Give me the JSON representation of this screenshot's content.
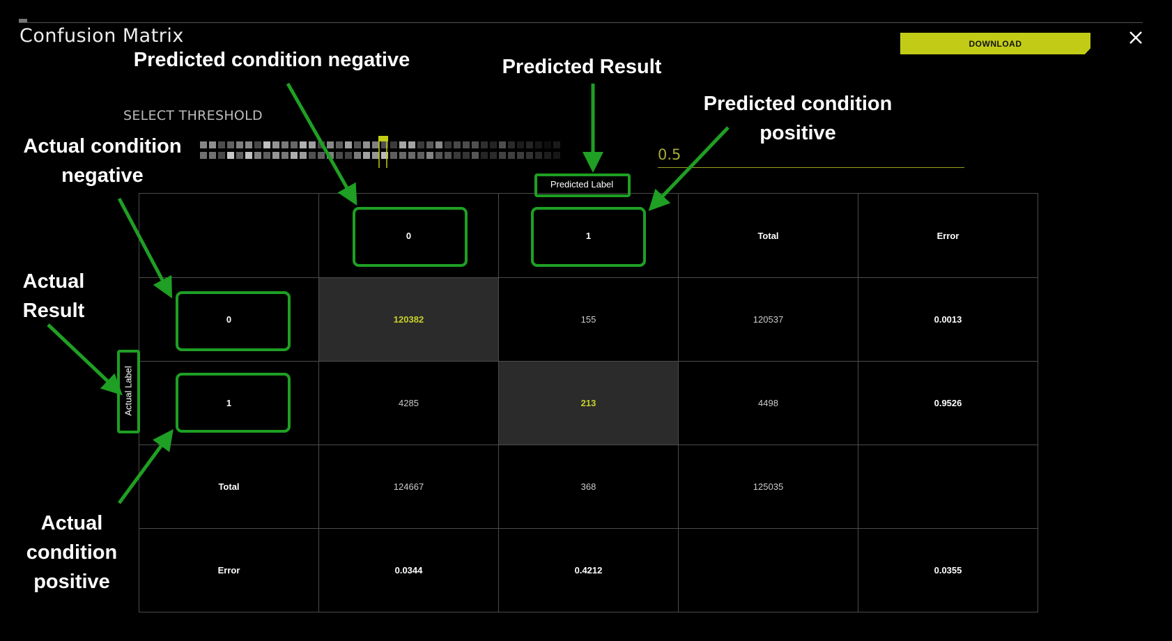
{
  "dialog": {
    "title": "Confusion Matrix",
    "download_label": "DOWNLOAD",
    "close_icon": "close-icon"
  },
  "threshold": {
    "label": "SELECT THRESHOLD",
    "value": "0.5"
  },
  "axis_labels": {
    "predicted": "Predicted Label",
    "actual": "Actual Label"
  },
  "matrix": {
    "header": [
      "",
      "0",
      "1",
      "Total",
      "Error"
    ],
    "rows": [
      {
        "label": "0",
        "cells": [
          "120382",
          "155",
          "120537",
          "0.0013"
        ]
      },
      {
        "label": "1",
        "cells": [
          "4285",
          "213",
          "4498",
          "0.9526"
        ]
      },
      {
        "label": "Total",
        "cells": [
          "124667",
          "368",
          "125035",
          ""
        ]
      },
      {
        "label": "Error",
        "cells": [
          "0.0344",
          "0.4212",
          "",
          "0.0355"
        ]
      }
    ]
  },
  "annotations": {
    "pred_negative": "Predicted condition negative",
    "pred_result": "Predicted Result",
    "pred_positive_1": "Predicted condition",
    "pred_positive_2": "positive",
    "act_negative_1": "Actual condition",
    "act_negative_2": "negative",
    "act_result_1": "Actual",
    "act_result_2": "Result",
    "act_positive_1": "Actual",
    "act_positive_2": "condition",
    "act_positive_3": "positive"
  },
  "colors": {
    "accent": "#c2cc17",
    "annotation_green": "#1f9f24",
    "background": "#000000",
    "diagonal_cell": "#2b2b2b"
  }
}
